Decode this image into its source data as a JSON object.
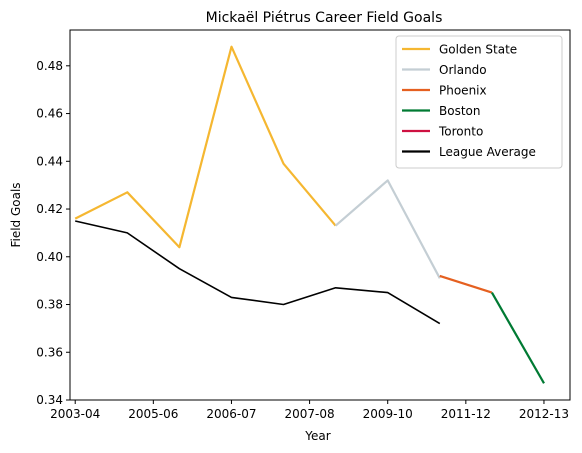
{
  "chart_data": {
    "type": "line",
    "title": "Mickaël Piétrus Career Field Goals",
    "xlabel": "Year",
    "ylabel": "Field Goals",
    "x_ticks": [
      "2003-04",
      "2005-06",
      "2006-07",
      "2007-08",
      "2009-10",
      "2011-12",
      "2012-13"
    ],
    "xlim": [
      -0.1,
      9.5
    ],
    "ylim": [
      0.34,
      0.495
    ],
    "y_ticks": [
      0.34,
      0.36,
      0.38,
      0.4,
      0.42,
      0.44,
      0.46,
      0.48
    ],
    "legend_position": "top-right",
    "grid": false,
    "series": [
      {
        "name": "Golden State",
        "color": "#f5b731",
        "points": [
          [
            0,
            0.416
          ],
          [
            1,
            0.427
          ],
          [
            2,
            0.404
          ],
          [
            3,
            0.488
          ],
          [
            4,
            0.439
          ],
          [
            5,
            0.413
          ]
        ]
      },
      {
        "name": "Orlando",
        "color": "#c4ced4",
        "points": [
          [
            5,
            0.413
          ],
          [
            6,
            0.432
          ],
          [
            7,
            0.391
          ]
        ]
      },
      {
        "name": "Phoenix",
        "color": "#e56020",
        "points": [
          [
            7,
            0.392
          ],
          [
            8,
            0.385
          ]
        ]
      },
      {
        "name": "Boston",
        "color": "#007a33",
        "points": [
          [
            8,
            0.385
          ],
          [
            9,
            0.347
          ]
        ]
      },
      {
        "name": "Toronto",
        "color": "#ce1141",
        "points": []
      },
      {
        "name": "League Average",
        "color": "#000000",
        "points": [
          [
            0,
            0.415
          ],
          [
            1,
            0.41
          ],
          [
            2,
            0.395
          ],
          [
            3,
            0.383
          ],
          [
            4,
            0.38
          ],
          [
            5,
            0.387
          ],
          [
            6,
            0.385
          ],
          [
            7,
            0.372
          ]
        ]
      }
    ]
  }
}
